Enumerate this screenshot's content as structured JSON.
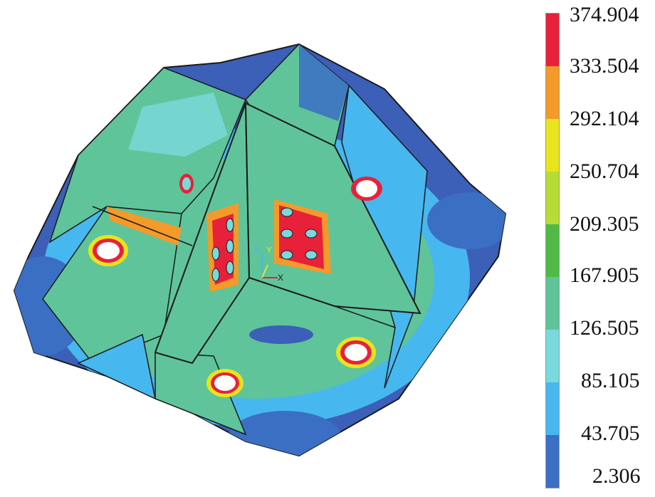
{
  "legend": {
    "values": [
      "374.904",
      "333.504",
      "292.104",
      "250.704",
      "209.305",
      "167.905",
      "126.505",
      "85.105",
      "43.705",
      "2.306"
    ],
    "colors": [
      "#e8213a",
      "#f39a2a",
      "#e9e41e",
      "#b6dc36",
      "#4fba45",
      "#5fc49a",
      "#7ad9dc",
      "#47b7ef",
      "#3a6fc4"
    ]
  },
  "colors": {
    "base": "#3c5fb8",
    "edge": "#1a1a1a",
    "mid": "#5bbf9a",
    "cyan": "#7ad9dc",
    "green": "#4fba45",
    "hot": "#e8213a",
    "warm": "#f39a2a",
    "yellow": "#e9e41e"
  },
  "triad": {
    "z_label": "Z",
    "y_label": "Y",
    "x_label": "X"
  }
}
